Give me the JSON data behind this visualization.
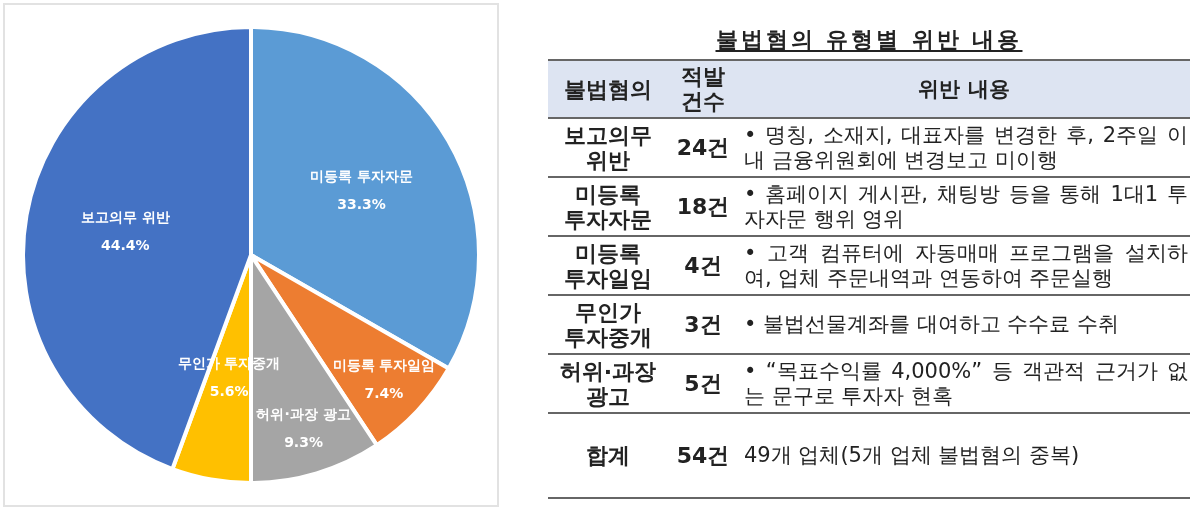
{
  "chart_data": [
    {
      "type": "pie",
      "categories": [
        "미등록 투자자문",
        "미등록 투자일임",
        "허위·과장 광고",
        "무인가 투자중개",
        "보고의무 위반"
      ],
      "values": [
        33.3,
        7.4,
        9.3,
        5.6,
        44.4
      ],
      "colors": [
        "#5b9bd5",
        "#ed7d31",
        "#a5a5a5",
        "#ffc000",
        "#4472c4"
      ],
      "value_labels": [
        "33.3%",
        "7.4%",
        "9.3%",
        "5.6%",
        "44.4%"
      ]
    },
    {
      "type": "other",
      "title": "불법혐의 유형별 위반 내용",
      "categories": [
        "불법혐의",
        "적발 건수",
        "위반 내용"
      ],
      "annotations": [
        "보고의무 위반",
        "24건",
        "• 명칭, 소재지, 대표자를 변경한 후, 2주일 이내 금융위원회에 변경보고 미이행",
        "미등록 투자자문",
        "18건",
        "• 홈페이지 게시판, 채팅방 등을 통해 1대1 투자자문 행위 영위",
        "미등록 투자일임",
        "4건",
        "• 고객 컴퓨터에 자동매매 프로그램을 설치하여, 업체 주문내역과 연동하여 주문실행",
        "무인가 투자중개",
        "3건",
        "• 불법선물계좌를 대여하고 수수료 수취",
        "허위·과장 광고",
        "5건",
        "• “목표수익률 4,000%” 등 객관적 근거가 없는 문구로 투자자 현혹",
        "합계",
        "54건",
        "49개 업체(5개 업체 불법혐의 중복)"
      ]
    }
  ]
}
